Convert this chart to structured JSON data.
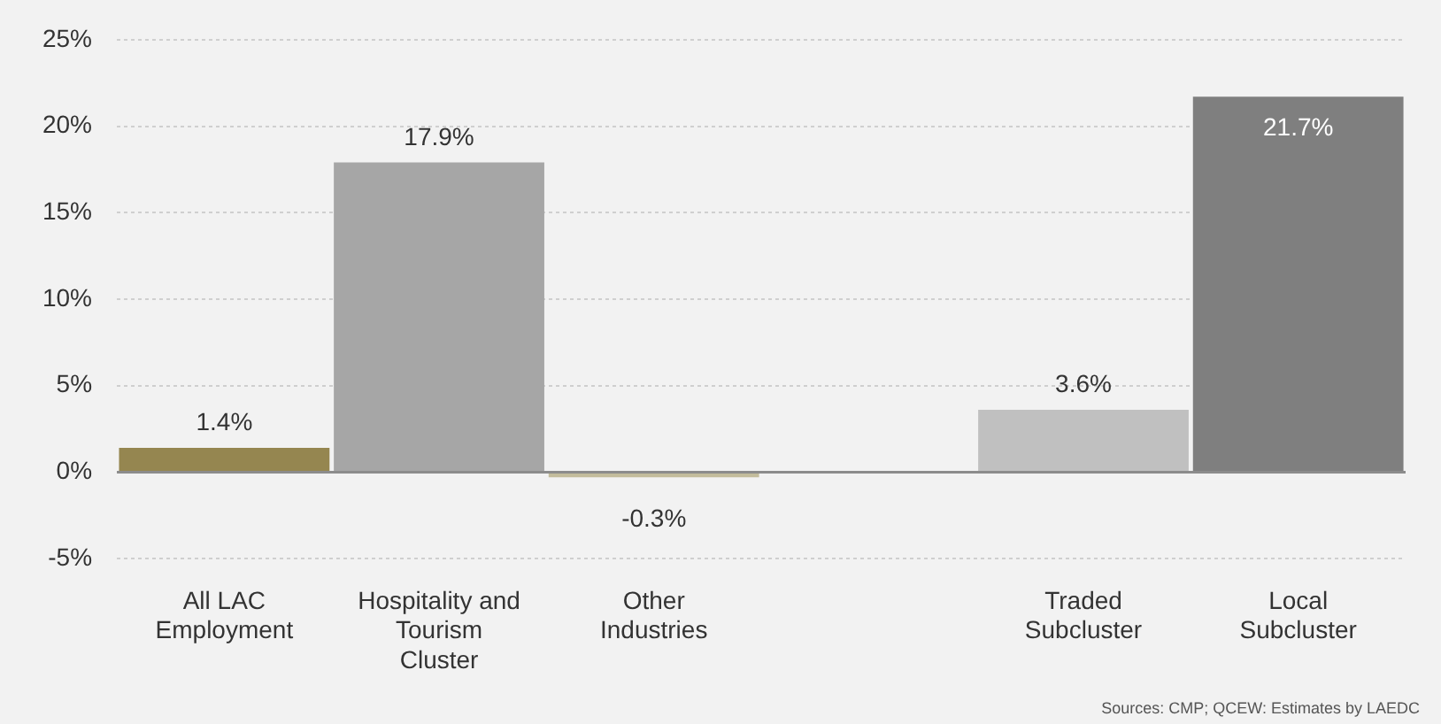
{
  "chart_data": {
    "type": "bar",
    "categories": [
      "All LAC\nEmployment",
      "Hospitality and\nTourism\nCluster",
      "Other\nIndustries",
      null,
      "Traded\nSubcluster",
      "Local\nSubcluster"
    ],
    "values": [
      1.4,
      17.9,
      -0.3,
      null,
      3.6,
      21.7
    ],
    "colors": [
      "#958650",
      "#a6a6a6",
      "#c3bc9c",
      "#a6a6a6",
      "#c0c0c0",
      "#7f7f7f"
    ],
    "value_labels": [
      "1.4%",
      "17.9%",
      "-0.3%",
      null,
      "3.6%",
      "21.7%"
    ],
    "ylim": [
      -5,
      25
    ],
    "yticks": [
      {
        "value": -5,
        "label": "-5%"
      },
      {
        "value": 0,
        "label": "0%"
      },
      {
        "value": 5,
        "label": "5%"
      },
      {
        "value": 10,
        "label": "10%"
      },
      {
        "value": 15,
        "label": "15%"
      },
      {
        "value": 20,
        "label": "20%"
      },
      {
        "value": 25,
        "label": "25%"
      }
    ],
    "grid": "y",
    "legend": false,
    "annotations": [
      "Sources: CMP; QCEW: Estimates by LAEDC"
    ]
  }
}
